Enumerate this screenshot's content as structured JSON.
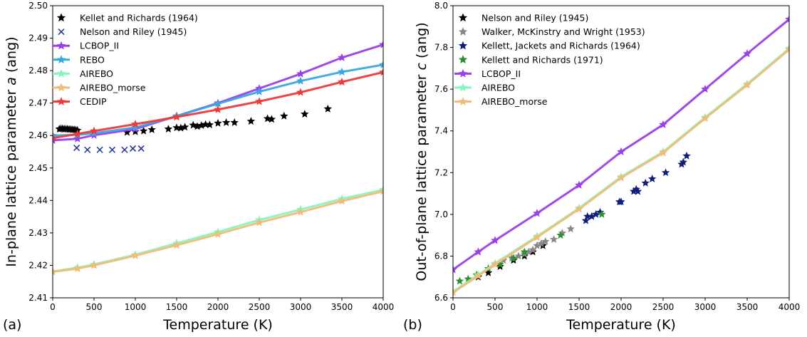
{
  "chart_data": [
    {
      "type": "line",
      "panel_label": "(a)",
      "xlabel": "Temperature (K)",
      "ylabel_parts": [
        "In-plane lattice parameter ",
        "a",
        " (ang)"
      ],
      "xlim": [
        0,
        4000
      ],
      "ylim": [
        2.41,
        2.5
      ],
      "xticks": [
        0,
        500,
        1000,
        1500,
        2000,
        2500,
        3000,
        3500,
        4000
      ],
      "yticks": [
        2.41,
        2.42,
        2.43,
        2.44,
        2.45,
        2.46,
        2.47,
        2.48,
        2.49,
        2.5
      ],
      "ytick_labels": [
        "2.41",
        "2.42",
        "2.43",
        "2.44",
        "2.45",
        "2.46",
        "2.47",
        "2.48",
        "2.49",
        "2.50"
      ],
      "grid": false,
      "legend_position": "upper-left",
      "series": [
        {
          "name": "Kellet and Richards (1964)",
          "kind": "points",
          "marker": "star",
          "color": "#000000",
          "x": [
            80,
            100,
            120,
            140,
            160,
            180,
            200,
            220,
            240,
            260,
            280,
            300,
            900,
            1000,
            1100,
            1200,
            1400,
            1500,
            1550,
            1600,
            1700,
            1750,
            1800,
            1850,
            1900,
            2000,
            2100,
            2200,
            2400,
            2600,
            2650,
            2800,
            3050,
            3330
          ],
          "y": [
            2.462,
            2.4621,
            2.4621,
            2.462,
            2.462,
            2.462,
            2.4619,
            2.4619,
            2.4618,
            2.4618,
            2.4617,
            2.4616,
            2.461,
            2.4612,
            2.4614,
            2.4618,
            2.462,
            2.4624,
            2.4623,
            2.4626,
            2.4632,
            2.4628,
            2.4631,
            2.4634,
            2.4633,
            2.4638,
            2.464,
            2.464,
            2.4644,
            2.4652,
            2.465,
            2.466,
            2.4666,
            2.4682
          ]
        },
        {
          "name": "Nelson and Riley (1945)",
          "kind": "points",
          "marker": "x",
          "color": "#1f2f8f",
          "x": [
            290,
            420,
            570,
            720,
            870,
            970,
            1070
          ],
          "y": [
            2.4562,
            2.4556,
            2.4556,
            2.4556,
            2.4556,
            2.456,
            2.456
          ]
        },
        {
          "name": "LCBOP_II",
          "kind": "line",
          "marker": "star",
          "color": "#9b3fe8",
          "x": [
            0,
            300,
            500,
            1000,
            1500,
            2000,
            2500,
            3000,
            3500,
            4000
          ],
          "y": [
            2.4585,
            2.459,
            2.4601,
            2.462,
            2.466,
            2.47,
            2.4745,
            2.479,
            2.484,
            2.488
          ]
        },
        {
          "name": "REBO",
          "kind": "line",
          "marker": "star",
          "color": "#3aa8e0",
          "x": [
            0,
            300,
            500,
            1000,
            1500,
            2000,
            2500,
            3000,
            3500,
            4000
          ],
          "y": [
            2.46,
            2.4602,
            2.4607,
            2.4625,
            2.466,
            2.4698,
            2.4735,
            2.4768,
            2.4796,
            2.4818
          ]
        },
        {
          "name": "AIREBO",
          "kind": "line",
          "marker": "star",
          "color": "#88f5bb",
          "x": [
            0,
            300,
            500,
            1000,
            1500,
            2000,
            2500,
            3000,
            3500,
            4000
          ],
          "y": [
            2.4181,
            2.4193,
            2.4203,
            2.4233,
            2.4268,
            2.4303,
            2.434,
            2.4372,
            2.4405,
            2.4433
          ]
        },
        {
          "name": "AIREBO_morse",
          "kind": "line",
          "marker": "star",
          "color": "#f2bb78",
          "x": [
            0,
            300,
            500,
            1000,
            1500,
            2000,
            2500,
            3000,
            3500,
            4000
          ],
          "y": [
            2.418,
            2.419,
            2.42,
            2.423,
            2.4262,
            2.4296,
            2.4332,
            2.4364,
            2.4398,
            2.4428
          ]
        },
        {
          "name": "CEDIP",
          "kind": "line",
          "marker": "star",
          "color": "#ee3a3a",
          "x": [
            0,
            300,
            500,
            1000,
            1500,
            2000,
            2500,
            3000,
            3500,
            4000
          ],
          "y": [
            2.4592,
            2.4605,
            2.4614,
            2.4635,
            2.4657,
            2.468,
            2.4705,
            2.4733,
            2.4765,
            2.4795
          ]
        }
      ]
    },
    {
      "type": "line",
      "panel_label": "(b)",
      "xlabel": "Temperature (K)",
      "ylabel_parts": [
        "Out-of-plane lattice parameter ",
        "c",
        " (ang)"
      ],
      "xlim": [
        0,
        4000
      ],
      "ylim": [
        6.6,
        8.0
      ],
      "xticks": [
        0,
        500,
        1000,
        1500,
        2000,
        2500,
        3000,
        3500,
        4000
      ],
      "yticks": [
        6.6,
        6.8,
        7.0,
        7.2,
        7.4,
        7.6,
        7.8,
        8.0
      ],
      "ytick_labels": [
        "6.6",
        "6.8",
        "7.0",
        "7.2",
        "7.4",
        "7.6",
        "7.8",
        "8.0"
      ],
      "grid": false,
      "legend_position": "upper-left",
      "series": [
        {
          "name": "Nelson and Riley (1945)",
          "kind": "points",
          "marker": "star",
          "color": "#000000",
          "x": [
            300,
            420,
            560,
            720,
            850,
            950,
            1070
          ],
          "y": [
            6.7,
            6.72,
            6.75,
            6.78,
            6.8,
            6.82,
            6.85
          ]
        },
        {
          "name": "Walker, McKinstry and Wright (1953)",
          "kind": "points",
          "marker": "star",
          "color": "#888888",
          "x": [
            500,
            600,
            700,
            780,
            850,
            900,
            950,
            1000,
            1050,
            1100,
            1200,
            1300,
            1400
          ],
          "y": [
            6.76,
            6.78,
            6.79,
            6.8,
            6.81,
            6.82,
            6.83,
            6.85,
            6.86,
            6.87,
            6.88,
            6.91,
            6.93
          ]
        },
        {
          "name": "Kellett, Jackets and Richards (1964)",
          "kind": "points",
          "marker": "star",
          "color": "#10207a",
          "x": [
            1580,
            1600,
            1650,
            1700,
            1750,
            1980,
            2000,
            2150,
            2180,
            2200,
            2290,
            2370,
            2530,
            2720,
            2740,
            2780
          ],
          "y": [
            6.97,
            6.99,
            6.99,
            7.0,
            7.01,
            7.06,
            7.06,
            7.11,
            7.12,
            7.11,
            7.15,
            7.17,
            7.2,
            7.24,
            7.25,
            7.28
          ]
        },
        {
          "name": "Kellett and Richards (1971)",
          "kind": "points",
          "marker": "star",
          "color": "#2e8f2e",
          "x": [
            80,
            180,
            280,
            420,
            560,
            720,
            850,
            1280,
            1770
          ],
          "y": [
            6.68,
            6.69,
            6.71,
            6.74,
            6.76,
            6.79,
            6.82,
            6.9,
            7.0
          ]
        },
        {
          "name": "LCBOP_II",
          "kind": "line",
          "marker": "star",
          "color": "#9b3fe8",
          "x": [
            0,
            300,
            500,
            1000,
            1500,
            2000,
            2500,
            3000,
            3500,
            4000
          ],
          "y": [
            6.735,
            6.82,
            6.875,
            7.005,
            7.14,
            7.3,
            7.43,
            7.6,
            7.77,
            7.935
          ]
        },
        {
          "name": "AIREBO",
          "kind": "line",
          "marker": "star",
          "color": "#88f5bb",
          "x": [
            0,
            300,
            500,
            1000,
            1500,
            2000,
            2500,
            3000,
            3500,
            4000
          ],
          "y": [
            6.63,
            6.71,
            6.765,
            6.895,
            7.03,
            7.18,
            7.3,
            7.465,
            7.625,
            7.795
          ]
        },
        {
          "name": "AIREBO_morse",
          "kind": "line",
          "marker": "star",
          "color": "#f2bb78",
          "x": [
            0,
            300,
            500,
            1000,
            1500,
            2000,
            2500,
            3000,
            3500,
            4000
          ],
          "y": [
            6.625,
            6.705,
            6.76,
            6.89,
            7.025,
            7.175,
            7.295,
            7.46,
            7.62,
            7.79
          ]
        }
      ]
    }
  ]
}
